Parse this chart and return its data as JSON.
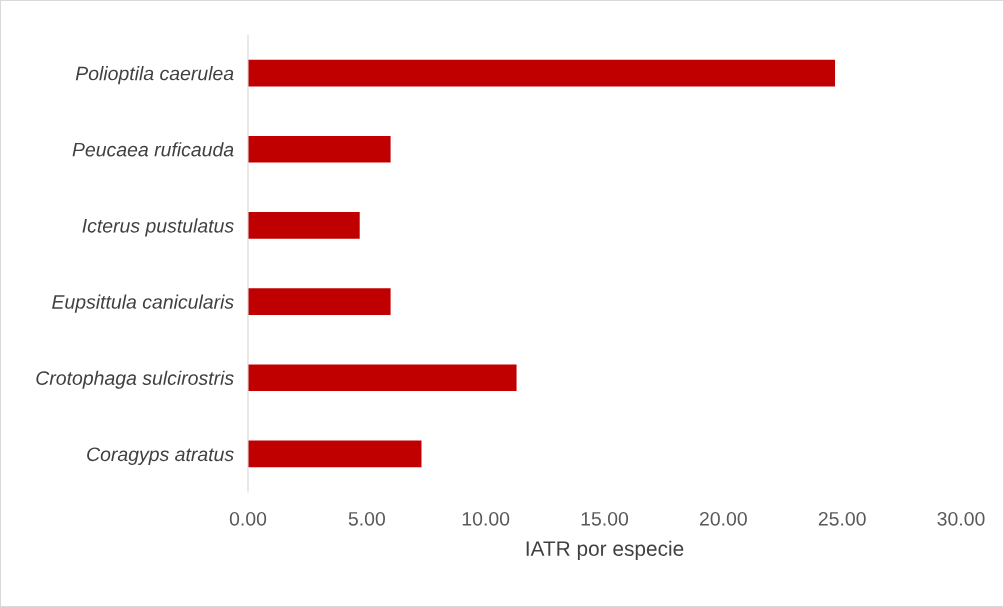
{
  "chart_data": {
    "type": "bar",
    "orientation": "horizontal",
    "xlabel": "IATR por especie",
    "categories": [
      "Polioptila caerulea",
      "Peucaea ruficauda",
      "Icterus pustulatus",
      "Eupsittula canicularis",
      "Crotophaga sulcirostris",
      "Coragyps atratus"
    ],
    "values": [
      24.7,
      6.0,
      4.7,
      6.0,
      11.3,
      7.3
    ],
    "color": "#c00000",
    "xlim": [
      0,
      30
    ],
    "xticks": [
      {
        "value": 0,
        "label": "0.00"
      },
      {
        "value": 5,
        "label": "5.00"
      },
      {
        "value": 10,
        "label": "10.00"
      },
      {
        "value": 15,
        "label": "15.00"
      },
      {
        "value": 20,
        "label": "20.00"
      },
      {
        "value": 25,
        "label": "25.00"
      },
      {
        "value": 30,
        "label": "30.00"
      }
    ],
    "grid": false
  }
}
